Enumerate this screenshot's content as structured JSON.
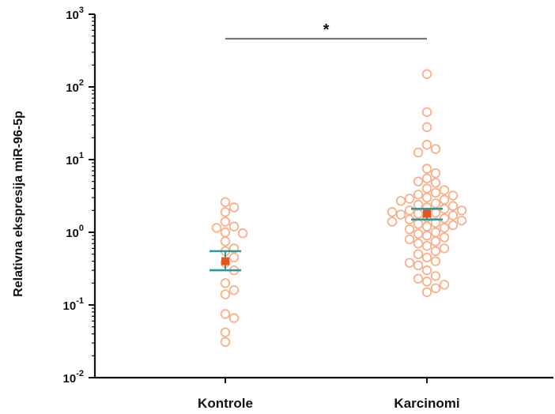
{
  "chart_data": {
    "type": "scatter",
    "ylabel": "Relativna ekspresija miR-96-5p",
    "yscale": "log",
    "ylim": [
      0.01,
      1000
    ],
    "yticks": [
      {
        "value": 0.01,
        "base": "10",
        "exp": "-2"
      },
      {
        "value": 0.1,
        "base": "10",
        "exp": "-1"
      },
      {
        "value": 1,
        "base": "10",
        "exp": "0"
      },
      {
        "value": 10,
        "base": "10",
        "exp": "1"
      },
      {
        "value": 100,
        "base": "10",
        "exp": "2"
      },
      {
        "value": 1000,
        "base": "10",
        "exp": "3"
      }
    ],
    "categories": [
      "Kontrole",
      "Karcinomi"
    ],
    "significance": {
      "from": "Kontrole",
      "to": "Karcinomi",
      "label": "*"
    },
    "grid": false,
    "series": [
      {
        "category": "Kontrole",
        "points": [
          2.6,
          2.2,
          1.9,
          1.4,
          1.2,
          1.15,
          1.0,
          0.97,
          0.75,
          0.6,
          0.55,
          0.45,
          0.38,
          0.3,
          0.2,
          0.16,
          0.14,
          0.075,
          0.066,
          0.042,
          0.031
        ],
        "mean": 0.4,
        "error_low": 0.3,
        "error_high": 0.55
      },
      {
        "category": "Karcinomi",
        "points": [
          150,
          45,
          28,
          16,
          14,
          12.5,
          7.5,
          6.5,
          5.5,
          5.0,
          4.8,
          4.0,
          3.8,
          3.5,
          3.3,
          3.2,
          3.0,
          2.9,
          2.8,
          2.7,
          2.5,
          2.4,
          2.3,
          2.2,
          2.1,
          2.0,
          2.0,
          1.9,
          1.85,
          1.8,
          1.75,
          1.7,
          1.6,
          1.55,
          1.5,
          1.45,
          1.4,
          1.35,
          1.3,
          1.25,
          1.2,
          1.15,
          1.1,
          1.0,
          0.95,
          0.9,
          0.85,
          0.8,
          0.75,
          0.7,
          0.65,
          0.6,
          0.55,
          0.5,
          0.45,
          0.4,
          0.38,
          0.35,
          0.3,
          0.25,
          0.23,
          0.21,
          0.19,
          0.17,
          0.15
        ],
        "mean": 1.8,
        "error_low": 1.5,
        "error_high": 2.1
      }
    ],
    "colors": {
      "point_stroke": "#f7b08a",
      "mean_marker": "#e8531d",
      "error_bar": "#2a9a9c",
      "axis": "#111111",
      "significance_line": "#777777"
    }
  }
}
